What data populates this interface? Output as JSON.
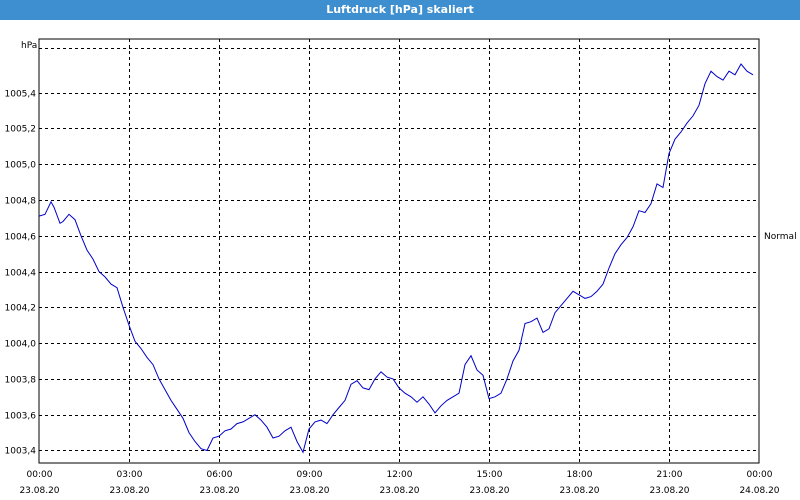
{
  "window": {
    "title": "Luftdruck [hPa] skaliert"
  },
  "chart_data": {
    "type": "line",
    "title": "Luftdruck [hPa] skaliert",
    "ylabel": "hPa",
    "xlabel": "",
    "ylim": [
      1003.33,
      1005.7
    ],
    "xlim": [
      0,
      24
    ],
    "grid": true,
    "reference_line": {
      "label": "Normal",
      "value": 1004.6
    },
    "y_ticks": [
      "1003,4",
      "1003,6",
      "1003,8",
      "1004,0",
      "1004,2",
      "1004,4",
      "1004,6",
      "1004,8",
      "1005,0",
      "1005,2",
      "1005,4"
    ],
    "y_tick_values": [
      1003.4,
      1003.6,
      1003.8,
      1004.0,
      1004.2,
      1004.4,
      1004.6,
      1004.8,
      1005.0,
      1005.2,
      1005.4
    ],
    "x_ticks": [
      {
        "value": 0,
        "time": "00:00",
        "date": "23.08.20"
      },
      {
        "value": 3,
        "time": "03:00",
        "date": "23.08.20"
      },
      {
        "value": 6,
        "time": "06:00",
        "date": "23.08.20"
      },
      {
        "value": 9,
        "time": "09:00",
        "date": "23.08.20"
      },
      {
        "value": 12,
        "time": "12:00",
        "date": "23.08.20"
      },
      {
        "value": 15,
        "time": "15:00",
        "date": "23.08.20"
      },
      {
        "value": 18,
        "time": "18:00",
        "date": "23.08.20"
      },
      {
        "value": 21,
        "time": "21:00",
        "date": "23.08.20"
      },
      {
        "value": 24,
        "time": "00:00",
        "date": "24.08.20"
      }
    ],
    "series": [
      {
        "color": "#0000c8",
        "x": [
          0,
          0.2,
          0.4,
          0.5,
          0.7,
          0.8,
          1.0,
          1.2,
          1.4,
          1.6,
          1.8,
          2.0,
          2.2,
          2.4,
          2.6,
          2.8,
          3.0,
          3.2,
          3.4,
          3.6,
          3.8,
          4.0,
          4.2,
          4.4,
          4.6,
          4.8,
          5.0,
          5.2,
          5.4,
          5.6,
          5.8,
          6.0,
          6.2,
          6.4,
          6.6,
          6.8,
          7.0,
          7.2,
          7.4,
          7.6,
          7.8,
          8.0,
          8.2,
          8.4,
          8.6,
          8.8,
          9.0,
          9.2,
          9.4,
          9.6,
          9.8,
          10.0,
          10.2,
          10.4,
          10.6,
          10.8,
          11.0,
          11.2,
          11.4,
          11.6,
          11.8,
          12.0,
          12.2,
          12.4,
          12.6,
          12.8,
          13.0,
          13.2,
          13.4,
          13.6,
          13.8,
          14.0,
          14.2,
          14.4,
          14.6,
          14.8,
          15.0,
          15.2,
          15.4,
          15.6,
          15.8,
          16.0,
          16.2,
          16.4,
          16.6,
          16.8,
          17.0,
          17.2,
          17.4,
          17.6,
          17.8,
          18.0,
          18.2,
          18.4,
          18.6,
          18.8,
          19.0,
          19.2,
          19.4,
          19.6,
          19.8,
          20.0,
          20.2,
          20.4,
          20.6,
          20.8,
          21.0,
          21.2,
          21.4,
          21.6,
          21.8,
          22.0,
          22.2,
          22.4,
          22.6,
          22.8,
          23.0,
          23.2,
          23.4,
          23.6,
          23.8
        ],
        "values": [
          1004.71,
          1004.72,
          1004.79,
          1004.76,
          1004.67,
          1004.68,
          1004.72,
          1004.69,
          1004.6,
          1004.52,
          1004.47,
          1004.4,
          1004.37,
          1004.33,
          1004.31,
          1004.2,
          1004.1,
          1004.01,
          1003.97,
          1003.92,
          1003.88,
          1003.8,
          1003.74,
          1003.68,
          1003.63,
          1003.58,
          1003.5,
          1003.45,
          1003.41,
          1003.4,
          1003.47,
          1003.48,
          1003.51,
          1003.52,
          1003.55,
          1003.56,
          1003.58,
          1003.6,
          1003.57,
          1003.53,
          1003.47,
          1003.48,
          1003.51,
          1003.53,
          1003.45,
          1003.39,
          1003.52,
          1003.56,
          1003.57,
          1003.55,
          1003.6,
          1003.64,
          1003.68,
          1003.77,
          1003.79,
          1003.75,
          1003.74,
          1003.8,
          1003.84,
          1003.81,
          1003.8,
          1003.75,
          1003.72,
          1003.7,
          1003.67,
          1003.7,
          1003.66,
          1003.61,
          1003.65,
          1003.68,
          1003.7,
          1003.72,
          1003.88,
          1003.93,
          1003.85,
          1003.82,
          1003.69,
          1003.7,
          1003.72,
          1003.8,
          1003.9,
          1003.96,
          1004.11,
          1004.12,
          1004.14,
          1004.06,
          1004.08,
          1004.17,
          1004.21,
          1004.25,
          1004.29,
          1004.27,
          1004.25,
          1004.26,
          1004.29,
          1004.33,
          1004.42,
          1004.5,
          1004.55,
          1004.59,
          1004.65,
          1004.74,
          1004.73,
          1004.78,
          1004.89,
          1004.87,
          1005.06,
          1005.14,
          1005.18,
          1005.23,
          1005.27,
          1005.33,
          1005.45,
          1005.52,
          1005.49,
          1005.47,
          1005.52,
          1005.5,
          1005.56,
          1005.52,
          1005.5
        ]
      }
    ]
  }
}
